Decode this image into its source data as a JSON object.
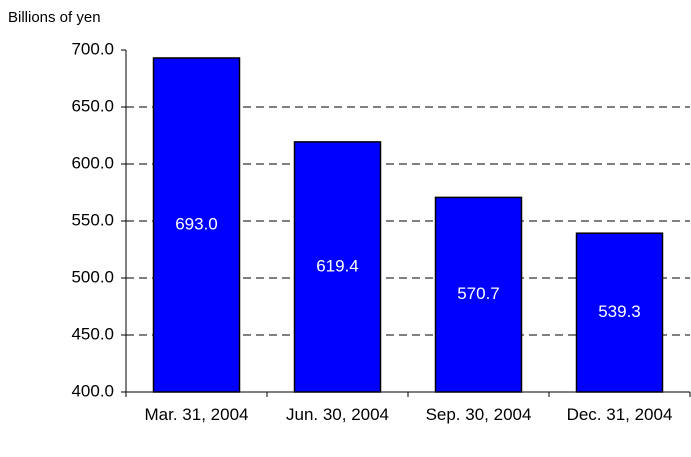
{
  "chart_data": {
    "type": "bar",
    "y_axis_label": "Billions of yen",
    "categories": [
      "Mar. 31, 2004",
      "Jun. 30, 2004",
      "Sep. 30, 2004",
      "Dec. 31, 2004"
    ],
    "values": [
      693.0,
      619.4,
      570.7,
      539.3
    ],
    "value_labels": [
      "693.0",
      "619.4",
      "570.7",
      "539.3"
    ],
    "color": "#0000ff",
    "ylim": [
      400,
      700
    ],
    "yticks": [
      {
        "value": 400,
        "label": "400.0"
      },
      {
        "value": 450,
        "label": "450.0"
      },
      {
        "value": 500,
        "label": "500.0"
      },
      {
        "value": 550,
        "label": "550.0"
      },
      {
        "value": 600,
        "label": "600.0"
      },
      {
        "value": 650,
        "label": "650.0"
      },
      {
        "value": 700,
        "label": "700.0"
      }
    ],
    "grid": true
  }
}
